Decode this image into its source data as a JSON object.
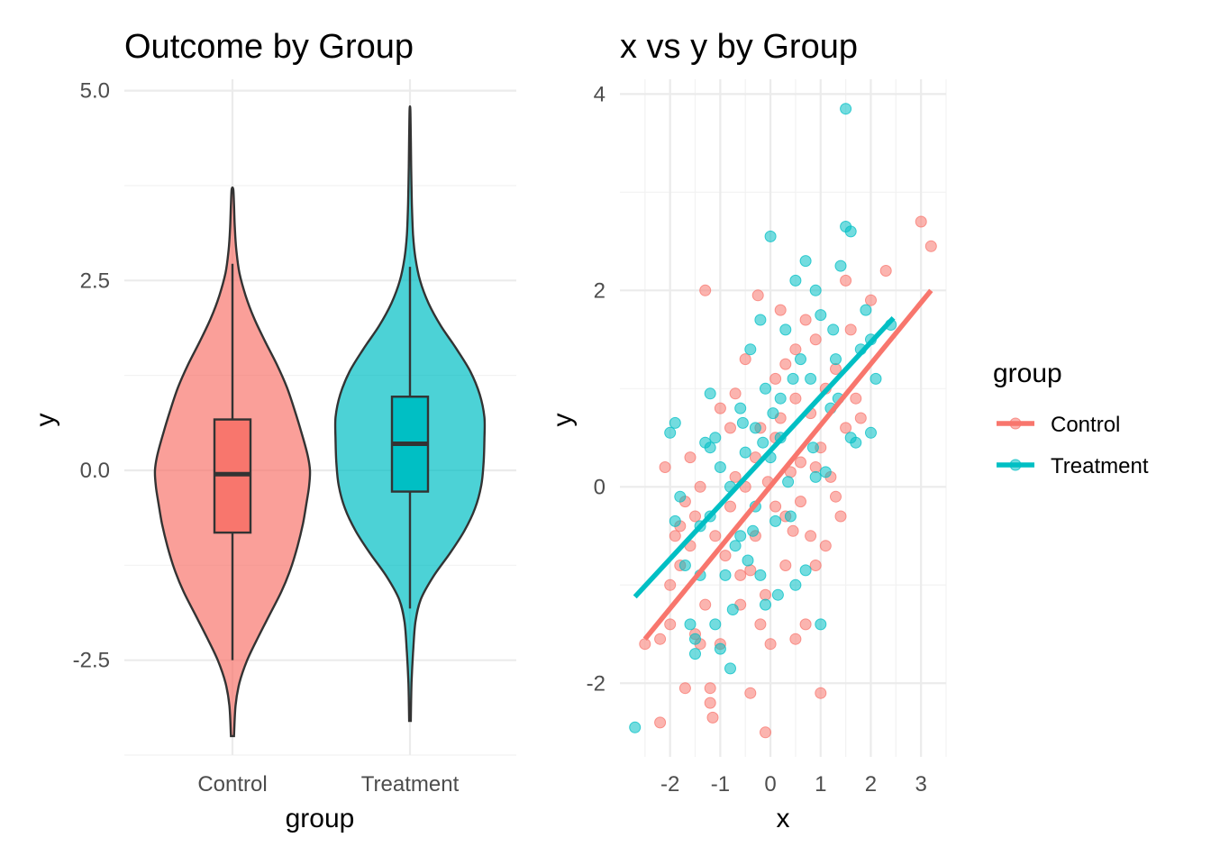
{
  "colors": {
    "Control": "#F8766D",
    "Treatment": "#00BFC4"
  },
  "chart_data": [
    {
      "type": "violin",
      "title": "Outcome by Group",
      "xlabel": "group",
      "ylabel": "y",
      "categories": [
        "Control",
        "Treatment"
      ],
      "ylim": [
        -3.75,
        5.15
      ],
      "yticks": [
        -2.5,
        0.0,
        2.5,
        5.0
      ],
      "ytick_labels": [
        "-2.5",
        "0.0",
        "2.5",
        "5.0"
      ],
      "grid": true,
      "series": [
        {
          "name": "Control",
          "violin_range": [
            -3.5,
            3.7
          ],
          "density_profile": [
            [
              -3.5,
              0.02
            ],
            [
              -3.1,
              0.04
            ],
            [
              -2.8,
              0.09
            ],
            [
              -2.5,
              0.19
            ],
            [
              -2.2,
              0.33
            ],
            [
              -1.9,
              0.48
            ],
            [
              -1.6,
              0.63
            ],
            [
              -1.3,
              0.75
            ],
            [
              -1.0,
              0.84
            ],
            [
              -0.7,
              0.91
            ],
            [
              -0.4,
              0.96
            ],
            [
              -0.2,
              0.99
            ],
            [
              0.0,
              1.0
            ],
            [
              0.2,
              0.97
            ],
            [
              0.5,
              0.89
            ],
            [
              0.8,
              0.8
            ],
            [
              1.1,
              0.7
            ],
            [
              1.4,
              0.57
            ],
            [
              1.7,
              0.42
            ],
            [
              2.0,
              0.28
            ],
            [
              2.3,
              0.17
            ],
            [
              2.6,
              0.09
            ],
            [
              2.9,
              0.05
            ],
            [
              3.2,
              0.03
            ],
            [
              3.5,
              0.02
            ],
            [
              3.7,
              0.01
            ]
          ],
          "box": {
            "q1": -0.82,
            "median": -0.05,
            "q3": 0.67,
            "whisker_low": -2.5,
            "whisker_high": 2.72
          }
        },
        {
          "name": "Treatment",
          "violin_range": [
            -3.3,
            4.75
          ],
          "density_profile": [
            [
              -3.3,
              0.01
            ],
            [
              -2.8,
              0.02
            ],
            [
              -2.4,
              0.04
            ],
            [
              -2.0,
              0.07
            ],
            [
              -1.7,
              0.14
            ],
            [
              -1.4,
              0.3
            ],
            [
              -1.1,
              0.51
            ],
            [
              -0.8,
              0.7
            ],
            [
              -0.5,
              0.84
            ],
            [
              -0.2,
              0.92
            ],
            [
              0.1,
              0.95
            ],
            [
              0.4,
              0.96
            ],
            [
              0.7,
              0.96
            ],
            [
              1.0,
              0.9
            ],
            [
              1.3,
              0.78
            ],
            [
              1.6,
              0.6
            ],
            [
              1.9,
              0.4
            ],
            [
              2.2,
              0.24
            ],
            [
              2.5,
              0.13
            ],
            [
              2.8,
              0.07
            ],
            [
              3.1,
              0.04
            ],
            [
              3.5,
              0.025
            ],
            [
              4.0,
              0.015
            ],
            [
              4.4,
              0.01
            ],
            [
              4.75,
              0.005
            ]
          ],
          "box": {
            "q1": -0.28,
            "median": 0.35,
            "q3": 0.97,
            "whisker_low": -1.82,
            "whisker_high": 2.68
          }
        }
      ]
    },
    {
      "type": "scatter",
      "title": "x vs y by Group",
      "xlabel": "x",
      "ylabel": "y",
      "xlim": [
        -3.0,
        3.5
      ],
      "ylim": [
        -2.75,
        4.15
      ],
      "xticks": [
        -2,
        -1,
        0,
        1,
        2,
        3
      ],
      "xtick_labels": [
        "-2",
        "-1",
        "0",
        "1",
        "2",
        "3"
      ],
      "yticks": [
        -2,
        0,
        2,
        4
      ],
      "ytick_labels": [
        "-2",
        "0",
        "2",
        "4"
      ],
      "grid": true,
      "legend": {
        "title": "group",
        "position": "right"
      },
      "series": [
        {
          "name": "Control",
          "fit_line": {
            "x": [
              -2.5,
              3.2
            ],
            "y": [
              -1.55,
              2.0
            ]
          },
          "points": [
            [
              -2.5,
              -1.6
            ],
            [
              -2.2,
              -2.4
            ],
            [
              -2.2,
              -1.55
            ],
            [
              -2.0,
              -1.0
            ],
            [
              -2.1,
              0.2
            ],
            [
              -1.9,
              -0.5
            ],
            [
              -1.8,
              -0.8
            ],
            [
              -1.7,
              -2.05
            ],
            [
              -1.6,
              -0.6
            ],
            [
              -1.5,
              -1.5
            ],
            [
              -1.4,
              -1.6
            ],
            [
              -1.4,
              0.0
            ],
            [
              -1.3,
              -1.2
            ],
            [
              -1.2,
              -2.2
            ],
            [
              -1.2,
              -2.05
            ],
            [
              -1.15,
              -2.35
            ],
            [
              -1.1,
              -0.5
            ],
            [
              -1.0,
              -1.6
            ],
            [
              -0.8,
              -0.2
            ],
            [
              -0.8,
              0.6
            ],
            [
              -0.7,
              0.95
            ],
            [
              -0.6,
              -0.9
            ],
            [
              -0.5,
              1.3
            ],
            [
              -0.4,
              -2.1
            ],
            [
              -0.3,
              -0.5
            ],
            [
              -0.3,
              0.3
            ],
            [
              -0.2,
              -1.4
            ],
            [
              -0.2,
              0.6
            ],
            [
              -0.1,
              -2.5
            ],
            [
              -0.1,
              -1.1
            ],
            [
              0.0,
              -1.6
            ],
            [
              0.1,
              0.5
            ],
            [
              0.1,
              1.1
            ],
            [
              0.2,
              1.8
            ],
            [
              0.3,
              -0.8
            ],
            [
              0.4,
              0.15
            ],
            [
              0.5,
              -1.55
            ],
            [
              0.5,
              0.9
            ],
            [
              0.6,
              0.25
            ],
            [
              0.7,
              -1.4
            ],
            [
              0.7,
              1.7
            ],
            [
              0.8,
              -0.5
            ],
            [
              0.8,
              0.75
            ],
            [
              0.9,
              1.5
            ],
            [
              1.0,
              -2.1
            ],
            [
              1.0,
              0.4
            ],
            [
              1.1,
              -0.6
            ],
            [
              1.2,
              0.1
            ],
            [
              1.3,
              1.2
            ],
            [
              1.4,
              -0.3
            ],
            [
              1.5,
              2.1
            ],
            [
              1.6,
              1.6
            ],
            [
              1.8,
              0.7
            ],
            [
              2.0,
              1.9
            ],
            [
              2.3,
              2.2
            ],
            [
              3.0,
              2.7
            ],
            [
              3.2,
              2.45
            ],
            [
              -1.5,
              -0.3
            ],
            [
              -1.0,
              0.8
            ],
            [
              -0.5,
              0.0
            ],
            [
              0.3,
              -0.3
            ],
            [
              0.9,
              -0.8
            ],
            [
              1.3,
              -0.1
            ],
            [
              -2.0,
              -1.4
            ],
            [
              -1.8,
              -0.4
            ],
            [
              -1.3,
              2.0
            ],
            [
              -0.25,
              1.95
            ],
            [
              0.5,
              1.4
            ],
            [
              1.1,
              1.0
            ],
            [
              1.7,
              0.9
            ],
            [
              -0.6,
              -1.2
            ],
            [
              -0.9,
              -0.7
            ],
            [
              -0.4,
              -0.85
            ],
            [
              0.1,
              -0.2
            ],
            [
              0.6,
              -0.15
            ],
            [
              0.9,
              0.2
            ],
            [
              1.5,
              0.6
            ],
            [
              -1.6,
              0.3
            ],
            [
              -1.7,
              -0.15
            ],
            [
              -0.7,
              0.1
            ],
            [
              0.2,
              0.7
            ],
            [
              0.3,
              1.25
            ],
            [
              -0.05,
              0.05
            ],
            [
              0.45,
              -0.45
            ]
          ]
        },
        {
          "name": "Treatment",
          "fit_line": {
            "x": [
              -2.7,
              2.45
            ],
            "y": [
              -1.12,
              1.72
            ]
          },
          "points": [
            [
              -2.7,
              -2.45
            ],
            [
              -2.0,
              0.55
            ],
            [
              -1.9,
              0.65
            ],
            [
              -1.9,
              -0.35
            ],
            [
              -1.8,
              -0.1
            ],
            [
              -1.7,
              -0.8
            ],
            [
              -1.6,
              -1.4
            ],
            [
              -1.5,
              -1.55
            ],
            [
              -1.5,
              -1.7
            ],
            [
              -1.4,
              -0.4
            ],
            [
              -1.3,
              0.45
            ],
            [
              -1.2,
              0.95
            ],
            [
              -1.2,
              -0.3
            ],
            [
              -1.1,
              -1.4
            ],
            [
              -1.0,
              -1.65
            ],
            [
              -1.0,
              0.2
            ],
            [
              -0.9,
              -0.9
            ],
            [
              -0.8,
              -1.85
            ],
            [
              -0.8,
              0.0
            ],
            [
              -0.7,
              -0.6
            ],
            [
              -0.6,
              0.8
            ],
            [
              -0.5,
              0.35
            ],
            [
              -0.4,
              1.4
            ],
            [
              -0.3,
              -0.2
            ],
            [
              -0.3,
              0.6
            ],
            [
              -0.2,
              -0.9
            ],
            [
              -0.1,
              1.0
            ],
            [
              -0.1,
              -1.2
            ],
            [
              0.0,
              2.55
            ],
            [
              0.0,
              0.3
            ],
            [
              0.1,
              -0.35
            ],
            [
              0.2,
              0.9
            ],
            [
              0.3,
              1.6
            ],
            [
              0.4,
              -0.3
            ],
            [
              0.5,
              -1.0
            ],
            [
              0.5,
              2.1
            ],
            [
              0.7,
              2.3
            ],
            [
              0.8,
              1.1
            ],
            [
              0.9,
              0.1
            ],
            [
              0.9,
              2.0
            ],
            [
              1.0,
              -1.4
            ],
            [
              1.0,
              1.75
            ],
            [
              1.2,
              0.8
            ],
            [
              1.3,
              1.3
            ],
            [
              1.4,
              2.25
            ],
            [
              1.5,
              3.85
            ],
            [
              1.5,
              2.65
            ],
            [
              1.6,
              2.6
            ],
            [
              1.7,
              0.45
            ],
            [
              1.8,
              1.4
            ],
            [
              1.9,
              1.8
            ],
            [
              2.0,
              1.5
            ],
            [
              2.1,
              1.1
            ],
            [
              2.0,
              0.55
            ],
            [
              2.4,
              1.65
            ],
            [
              -1.1,
              0.5
            ],
            [
              -0.6,
              -0.5
            ],
            [
              0.2,
              0.5
            ],
            [
              0.6,
              1.3
            ],
            [
              -0.2,
              1.7
            ],
            [
              0.35,
              0.05
            ],
            [
              0.7,
              -0.85
            ],
            [
              1.1,
              0.15
            ],
            [
              -1.4,
              -0.9
            ],
            [
              -0.75,
              -1.25
            ],
            [
              -0.45,
              -0.75
            ],
            [
              0.15,
              -1.1
            ],
            [
              0.85,
              0.4
            ],
            [
              1.35,
              0.9
            ],
            [
              -0.15,
              0.45
            ],
            [
              -1.2,
              0.4
            ],
            [
              -0.55,
              0.65
            ],
            [
              0.45,
              1.1
            ],
            [
              1.25,
              1.6
            ],
            [
              -0.35,
              -0.45
            ],
            [
              0.05,
              0.75
            ],
            [
              1.6,
              0.5
            ]
          ]
        }
      ]
    }
  ]
}
